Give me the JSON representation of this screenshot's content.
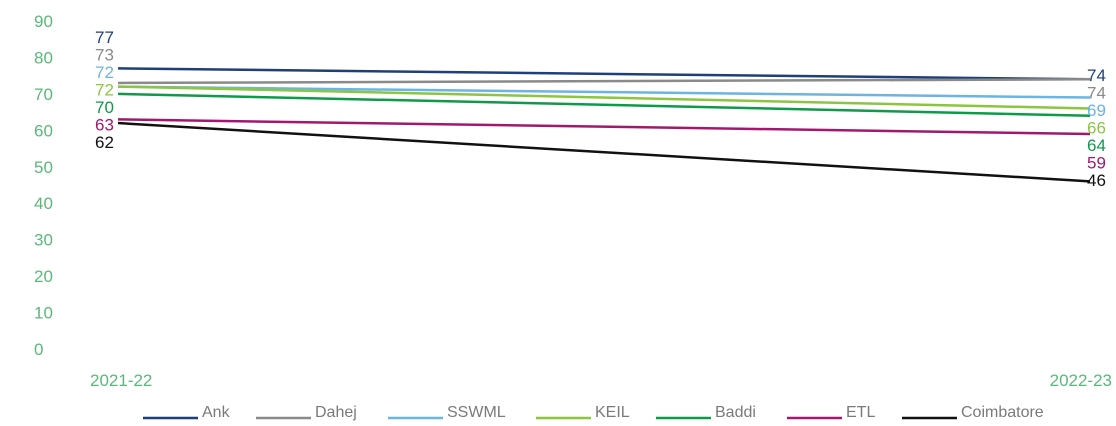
{
  "chart_data": {
    "type": "line",
    "x": [
      "2021-22",
      "2022-23"
    ],
    "ylim": [
      0,
      90
    ],
    "yticks": [
      0,
      10,
      20,
      30,
      40,
      50,
      60,
      70,
      80,
      90
    ],
    "grid": false,
    "legend_position": "bottom",
    "title": "",
    "xlabel": "",
    "ylabel": "",
    "series": [
      {
        "name": "Ank",
        "values": [
          77,
          74
        ],
        "color": "#1f3f7a"
      },
      {
        "name": "Dahej",
        "values": [
          73,
          74
        ],
        "color": "#8a8a8a"
      },
      {
        "name": "SSWML",
        "values": [
          72,
          69
        ],
        "color": "#6cb4e4"
      },
      {
        "name": "KEIL",
        "values": [
          72,
          66
        ],
        "color": "#8cc63f"
      },
      {
        "name": "Baddi",
        "values": [
          70,
          64
        ],
        "color": "#0e9a48"
      },
      {
        "name": "ETL",
        "values": [
          63,
          59
        ],
        "color": "#a3186f"
      },
      {
        "name": "Coimbatore",
        "values": [
          62,
          46
        ],
        "color": "#111111"
      }
    ]
  }
}
